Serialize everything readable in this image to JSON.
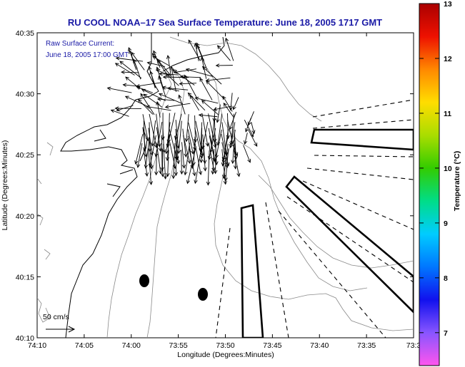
{
  "chart_data": {
    "type": "map",
    "title": "RU COOL  NOAA–17  Sea Surface Temperature:  June 18, 2005 1717 GMT",
    "annotation": {
      "line1": "Raw Surface Current:",
      "line2": "June 18, 2005 17:00 GMT"
    },
    "scale_label": "50 cm/s",
    "xlabel": "Longitude (Degrees:Minutes)",
    "ylabel": "Latitude (Degrees:Minutes)",
    "x_ticks": [
      "74:10",
      "74:05",
      "74:00",
      "73:55",
      "73:50",
      "73:45",
      "73:40",
      "73:35",
      "73:3"
    ],
    "y_ticks": [
      "40:35",
      "40:30",
      "40:25",
      "40:20",
      "40:15",
      "40:10"
    ],
    "colorbar": {
      "label": "Temperature (°C)",
      "min": 6.4,
      "max": 13,
      "ticks": [
        "13",
        "12",
        "11",
        "10",
        "9",
        "8",
        "7"
      ],
      "colors": [
        "#ff55ee",
        "#8855ff",
        "#1111ee",
        "#0077ff",
        "#00ccff",
        "#00dd88",
        "#33cc00",
        "#aadd00",
        "#ffdd00",
        "#ff8800",
        "#ee1100",
        "#aa0000"
      ]
    },
    "buoys": [
      {
        "lon": -73.979,
        "lat": 40.245
      },
      {
        "lon": -73.874,
        "lat": 40.225
      }
    ]
  }
}
